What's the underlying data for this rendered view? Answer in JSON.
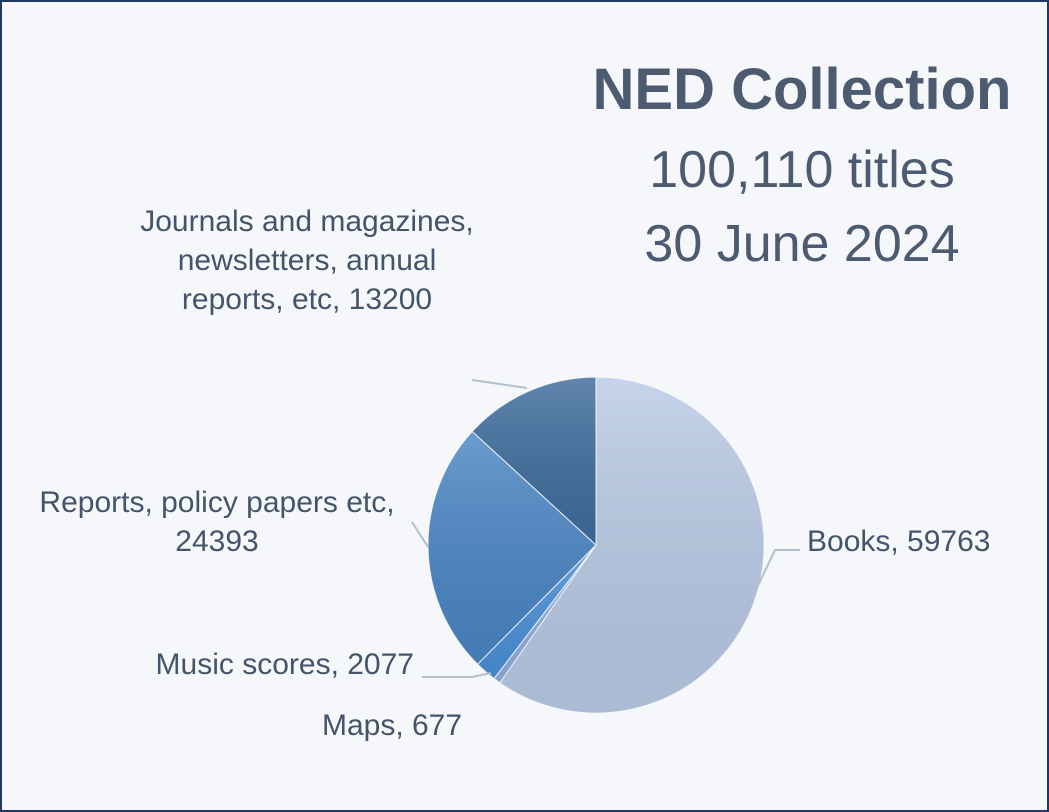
{
  "chart_data": {
    "type": "pie",
    "title": "NED Collection",
    "subtitle": [
      "100,110 titles",
      "30 June 2024"
    ],
    "values": [
      59763,
      677,
      2077,
      24393,
      13200
    ],
    "value_labels": [
      "Books, 59763",
      "Maps, 677",
      "Music scores, 2077",
      "Reports, policy papers etc, 24393",
      "Journals and magazines, newsletters, annual reports, etc, 13200"
    ],
    "colors": [
      "#b9cbe6",
      "#8fb0de",
      "#4a90d9",
      "#4a86c5",
      "#3f6d9e"
    ]
  }
}
